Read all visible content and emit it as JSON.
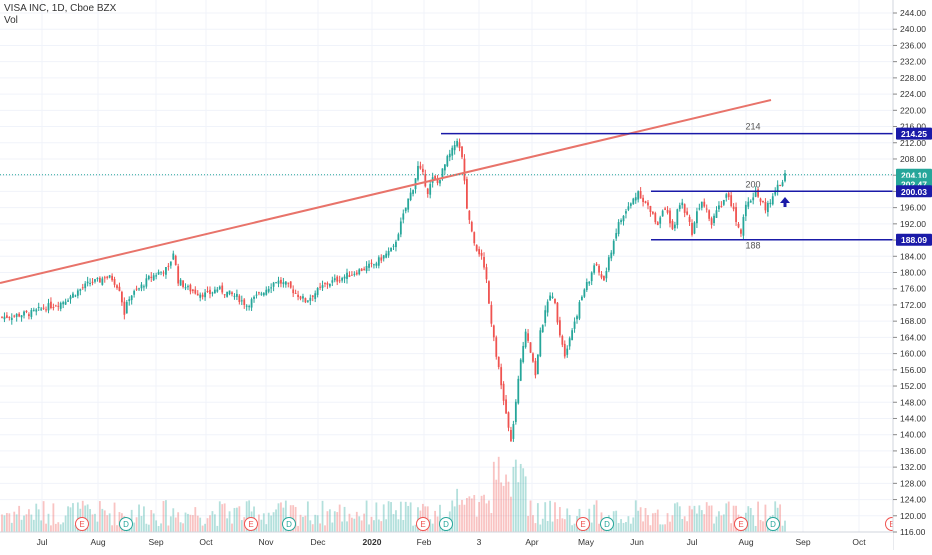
{
  "header": {
    "symbol_line": "VISA INC, 1D, Cboe BZX",
    "volume_label": "Vol"
  },
  "colors": {
    "up": "#26a69a",
    "down": "#ef5350",
    "trendline": "#e8736a",
    "level_line": "#1a1aa8",
    "last_price_badge": "#26a69a",
    "dotted_last": "#26a69a"
  },
  "chart_data": {
    "type": "candlestick",
    "title": "VISA INC, 1D, Cboe BZX",
    "ylim": [
      116,
      246
    ],
    "y_ticks": [
      244,
      240,
      236,
      232,
      228,
      224,
      220,
      216,
      212,
      208,
      204,
      200,
      196,
      192,
      188,
      184,
      180,
      176,
      172,
      168,
      164,
      160,
      156,
      152,
      148,
      144,
      140,
      136,
      132,
      128,
      124,
      120,
      116
    ],
    "y_tick_labels": [
      "244.00",
      "240.00",
      "236.00",
      "232.00",
      "228.00",
      "224.00",
      "220.00",
      "216.00",
      "212.00",
      "208.00",
      "204.00",
      "200.00",
      "196.00",
      "192.00",
      "188.00",
      "184.00",
      "180.00",
      "176.00",
      "172.00",
      "168.00",
      "164.00",
      "160.00",
      "156.00",
      "152.00",
      "148.00",
      "144.00",
      "140.00",
      "136.00",
      "132.00",
      "128.00",
      "124.00",
      "120.00",
      "116.00"
    ],
    "x_tick_labels": [
      "Jul",
      "Aug",
      "Sep",
      "Oct",
      "Nov",
      "Dec",
      "2020",
      "Feb",
      "3",
      "Apr",
      "May",
      "Jun",
      "Jul",
      "Aug",
      "Sep",
      "Oct"
    ],
    "grid": true,
    "price_axis": "right",
    "close_path": [
      [
        0,
        169
      ],
      [
        6,
        169.5
      ],
      [
        12,
        170
      ],
      [
        18,
        171.5
      ],
      [
        24,
        172.5
      ],
      [
        30,
        175
      ],
      [
        36,
        177.5
      ],
      [
        40,
        178
      ],
      [
        42,
        179
      ],
      [
        45,
        178.5
      ],
      [
        48,
        176
      ],
      [
        50,
        170
      ],
      [
        52,
        174
      ],
      [
        56,
        176
      ],
      [
        60,
        178.5
      ],
      [
        64,
        180
      ],
      [
        68,
        181
      ],
      [
        70,
        185
      ],
      [
        72,
        178
      ],
      [
        76,
        176
      ],
      [
        80,
        175
      ],
      [
        84,
        174.5
      ],
      [
        88,
        176
      ],
      [
        92,
        175
      ],
      [
        96,
        174
      ],
      [
        100,
        172
      ],
      [
        104,
        174
      ],
      [
        108,
        176
      ],
      [
        112,
        178
      ],
      [
        116,
        177
      ],
      [
        120,
        175
      ],
      [
        124,
        173
      ],
      [
        128,
        175
      ],
      [
        132,
        177
      ],
      [
        136,
        178
      ],
      [
        140,
        179
      ],
      [
        144,
        180
      ],
      [
        148,
        181
      ],
      [
        152,
        182
      ],
      [
        156,
        184
      ],
      [
        160,
        186
      ],
      [
        162,
        190
      ],
      [
        164,
        194
      ],
      [
        166,
        198
      ],
      [
        168,
        201
      ],
      [
        170,
        206
      ],
      [
        172,
        204
      ],
      [
        174,
        200
      ],
      [
        176,
        203
      ],
      [
        178,
        202
      ],
      [
        180,
        205
      ],
      [
        182,
        208
      ],
      [
        184,
        210
      ],
      [
        186,
        213
      ],
      [
        188,
        208
      ],
      [
        190,
        196
      ],
      [
        192,
        190
      ],
      [
        194,
        186
      ],
      [
        196,
        184
      ],
      [
        198,
        178
      ],
      [
        200,
        168
      ],
      [
        202,
        160
      ],
      [
        204,
        152
      ],
      [
        206,
        145
      ],
      [
        208,
        138
      ],
      [
        210,
        148
      ],
      [
        212,
        158
      ],
      [
        214,
        166
      ],
      [
        216,
        161
      ],
      [
        218,
        155
      ],
      [
        220,
        165
      ],
      [
        222,
        170
      ],
      [
        224,
        175
      ],
      [
        226,
        172
      ],
      [
        228,
        165
      ],
      [
        230,
        160
      ],
      [
        232,
        164
      ],
      [
        234,
        168
      ],
      [
        236,
        172
      ],
      [
        238,
        176
      ],
      [
        240,
        178
      ],
      [
        242,
        182
      ],
      [
        244,
        180
      ],
      [
        246,
        178
      ],
      [
        248,
        183
      ],
      [
        250,
        188
      ],
      [
        252,
        192
      ],
      [
        254,
        194
      ],
      [
        256,
        196
      ],
      [
        258,
        198
      ],
      [
        260,
        200
      ],
      [
        262,
        198
      ],
      [
        264,
        196
      ],
      [
        266,
        194
      ],
      [
        268,
        192
      ],
      [
        270,
        196
      ],
      [
        272,
        194
      ],
      [
        274,
        190
      ],
      [
        276,
        195
      ],
      [
        278,
        197
      ],
      [
        280,
        194
      ],
      [
        282,
        190
      ],
      [
        284,
        195
      ],
      [
        286,
        198
      ],
      [
        288,
        196
      ],
      [
        290,
        192
      ],
      [
        292,
        196
      ],
      [
        294,
        197
      ],
      [
        296,
        199
      ],
      [
        298,
        197
      ],
      [
        300,
        193
      ],
      [
        302,
        190
      ],
      [
        304,
        196
      ],
      [
        306,
        198
      ],
      [
        308,
        200
      ],
      [
        310,
        198
      ],
      [
        312,
        196
      ],
      [
        314,
        197
      ],
      [
        316,
        200
      ],
      [
        318,
        202
      ],
      [
        320,
        204
      ]
    ],
    "volume_bars_visible": true,
    "earnings_markers": [
      "E",
      "E",
      "E",
      "E",
      "E",
      "E"
    ],
    "dividend_markers": [
      "D",
      "D",
      "D",
      "D",
      "D"
    ],
    "annotations": [
      {
        "type": "horizontal",
        "value": 214.25,
        "label": "214"
      },
      {
        "type": "horizontal",
        "value": 200.03,
        "label": "200"
      },
      {
        "type": "horizontal",
        "value": 188.09,
        "label": "188"
      },
      {
        "type": "trendline",
        "label": ""
      }
    ],
    "price_badges": [
      {
        "value": "214.25",
        "color": "#1a1aa8"
      },
      {
        "value": "204.10",
        "color": "#26a69a"
      },
      {
        "value": "202.47",
        "color": "#26a69a"
      },
      {
        "value": "200.03",
        "color": "#1a1aa8"
      },
      {
        "value": "188.09",
        "color": "#1a1aa8"
      }
    ],
    "last_price": 204.1
  }
}
